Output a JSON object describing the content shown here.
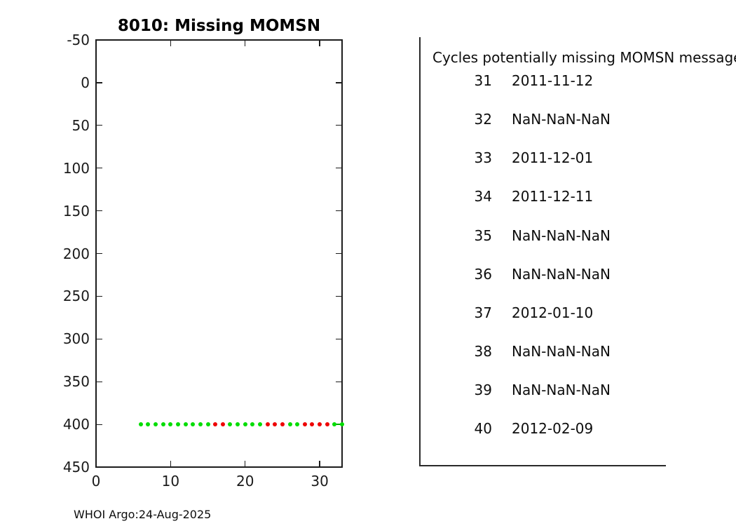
{
  "figure": {
    "footer": "WHOI Argo:24-Aug-2025"
  },
  "panel": {
    "header": "Cycles potentially missing MOMSN messages",
    "rows": [
      {
        "cycle": "31",
        "date": "2011-11-12"
      },
      {
        "cycle": "32",
        "date": "NaN-NaN-NaN"
      },
      {
        "cycle": "33",
        "date": "2011-12-01"
      },
      {
        "cycle": "34",
        "date": "2011-12-11"
      },
      {
        "cycle": "35",
        "date": "NaN-NaN-NaN"
      },
      {
        "cycle": "36",
        "date": "NaN-NaN-NaN"
      },
      {
        "cycle": "37",
        "date": "2012-01-10"
      },
      {
        "cycle": "38",
        "date": "NaN-NaN-NaN"
      },
      {
        "cycle": "39",
        "date": "NaN-NaN-NaN"
      },
      {
        "cycle": "40",
        "date": "2012-02-09"
      }
    ]
  },
  "chart_data": {
    "type": "scatter",
    "title": "8010: Missing MOMSN",
    "xlabel": "",
    "ylabel": "",
    "xlim": [
      0,
      33
    ],
    "ylim": [
      -50,
      450
    ],
    "y_axis_direction": "reversed (values increase downward)",
    "x_ticks": [
      0,
      10,
      20,
      30
    ],
    "y_ticks": [
      -50,
      0,
      50,
      100,
      150,
      200,
      250,
      300,
      350,
      400,
      450
    ],
    "grid": false,
    "legend": "none",
    "marker_value_y": 400,
    "colors": {
      "g": "#00dd00",
      "r": "#ee0000"
    },
    "points": [
      {
        "x": 6,
        "c": "g"
      },
      {
        "x": 7,
        "c": "g"
      },
      {
        "x": 8,
        "c": "g"
      },
      {
        "x": 9,
        "c": "g"
      },
      {
        "x": 10,
        "c": "g"
      },
      {
        "x": 11,
        "c": "g"
      },
      {
        "x": 12,
        "c": "g"
      },
      {
        "x": 13,
        "c": "g"
      },
      {
        "x": 14,
        "c": "g"
      },
      {
        "x": 15,
        "c": "g"
      },
      {
        "x": 16,
        "c": "r"
      },
      {
        "x": 17,
        "c": "r"
      },
      {
        "x": 18,
        "c": "g"
      },
      {
        "x": 19,
        "c": "g"
      },
      {
        "x": 20,
        "c": "g"
      },
      {
        "x": 21,
        "c": "g"
      },
      {
        "x": 22,
        "c": "g"
      },
      {
        "x": 23,
        "c": "r"
      },
      {
        "x": 24,
        "c": "r"
      },
      {
        "x": 25,
        "c": "r"
      },
      {
        "x": 26,
        "c": "g"
      },
      {
        "x": 27,
        "c": "g"
      },
      {
        "x": 28,
        "c": "r"
      },
      {
        "x": 29,
        "c": "r"
      },
      {
        "x": 30,
        "c": "r"
      },
      {
        "x": 31,
        "c": "r"
      },
      {
        "x": 32,
        "c": "g"
      },
      {
        "x": 33,
        "c": "g"
      }
    ],
    "connector": {
      "x1": 32.2,
      "x2": 33.1,
      "y": 400,
      "color": "#00aa00"
    }
  }
}
